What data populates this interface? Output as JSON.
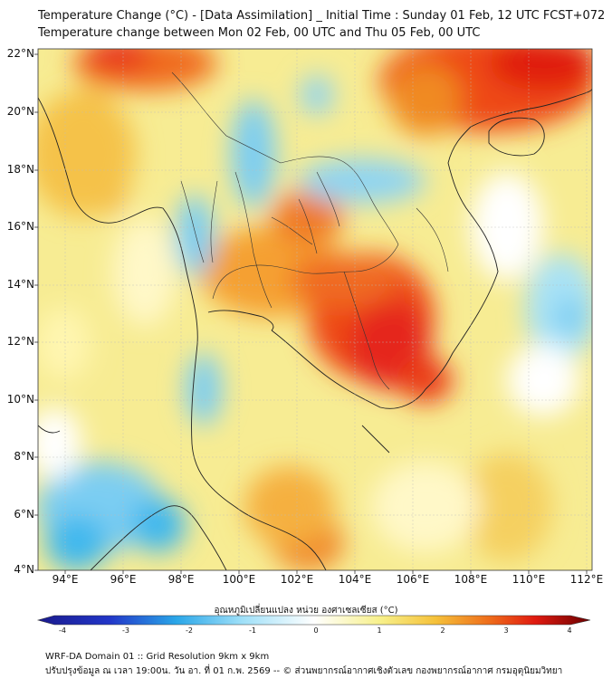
{
  "title": {
    "line1": "Temperature Change (°C) - [Data Assimilation] _ Initial Time : Sunday 01 Feb, 12 UTC FCST+072",
    "line2": "Temperature change between Mon 02 Feb, 00 UTC and Thu 05 Feb, 00 UTC"
  },
  "map": {
    "lat_ticks": [
      "22°N",
      "20°N",
      "18°N",
      "16°N",
      "14°N",
      "12°N",
      "10°N",
      "8°N",
      "6°N",
      "4°N"
    ],
    "lon_ticks": [
      "94°E",
      "96°E",
      "98°E",
      "100°E",
      "102°E",
      "104°E",
      "106°E",
      "108°E",
      "110°E",
      "112°E"
    ]
  },
  "colorbar": {
    "title": "อุณหภูมิเปลี่ยนแปลง หน่วย องศาเซลเซียส (°C)",
    "ticks": [
      "-4",
      "-3",
      "-2",
      "-1",
      "0",
      "1",
      "2",
      "3",
      "4"
    ],
    "colors": {
      "min": "#1a1a8c",
      "cold": "#2aa6e8",
      "neutral": "#ffffff",
      "warm": "#f5e27a",
      "hot": "#e83a10",
      "max": "#6b0000"
    }
  },
  "footer": {
    "line1": "WRF-DA Domain 01 :: Grid Resolution 9km x 9km",
    "line2": "ปรับปรุงข้อมูล ณ เวลา 19:00น. วัน อา. ที่ 01 ก.พ. 2569 -- © ส่วนพยากรณ์อากาศเชิงตัวเลข กองพยากรณ์อากาศ กรมอุตุนิยมวิทยา"
  }
}
